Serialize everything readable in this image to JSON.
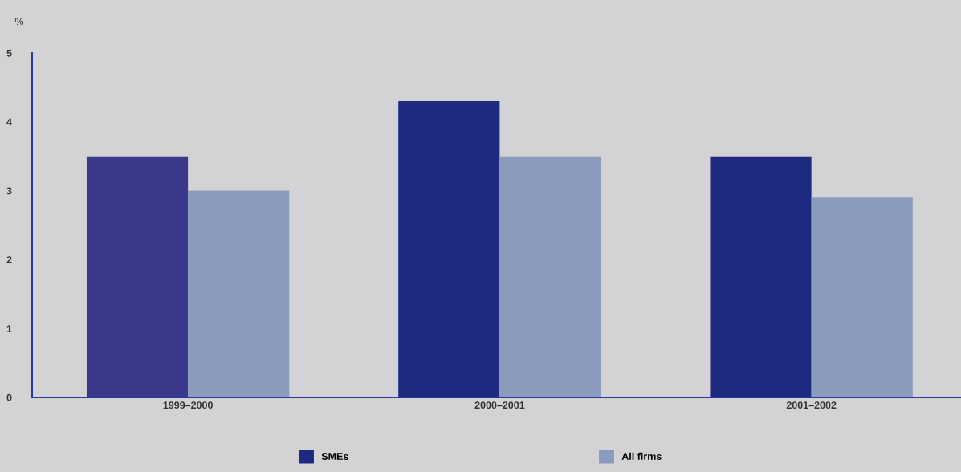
{
  "chart_data": {
    "type": "bar",
    "ylabel": "%",
    "categories": [
      "1999–2000",
      "2000–2001",
      "2001–2002"
    ],
    "series": [
      {
        "name": "SMEs",
        "color": "#1d2a80",
        "colors": [
          "#39388a",
          "#1d2a80",
          "#1d2a80"
        ],
        "values": [
          3.5,
          4.3,
          3.5
        ]
      },
      {
        "name": "All firms",
        "color": "#8a9bbd",
        "values": [
          3.0,
          3.5,
          2.9
        ]
      }
    ],
    "ylim": [
      0,
      5
    ],
    "yticks": [
      0,
      1,
      2,
      3,
      4,
      5
    ],
    "grid": false,
    "legend": "bottom"
  }
}
